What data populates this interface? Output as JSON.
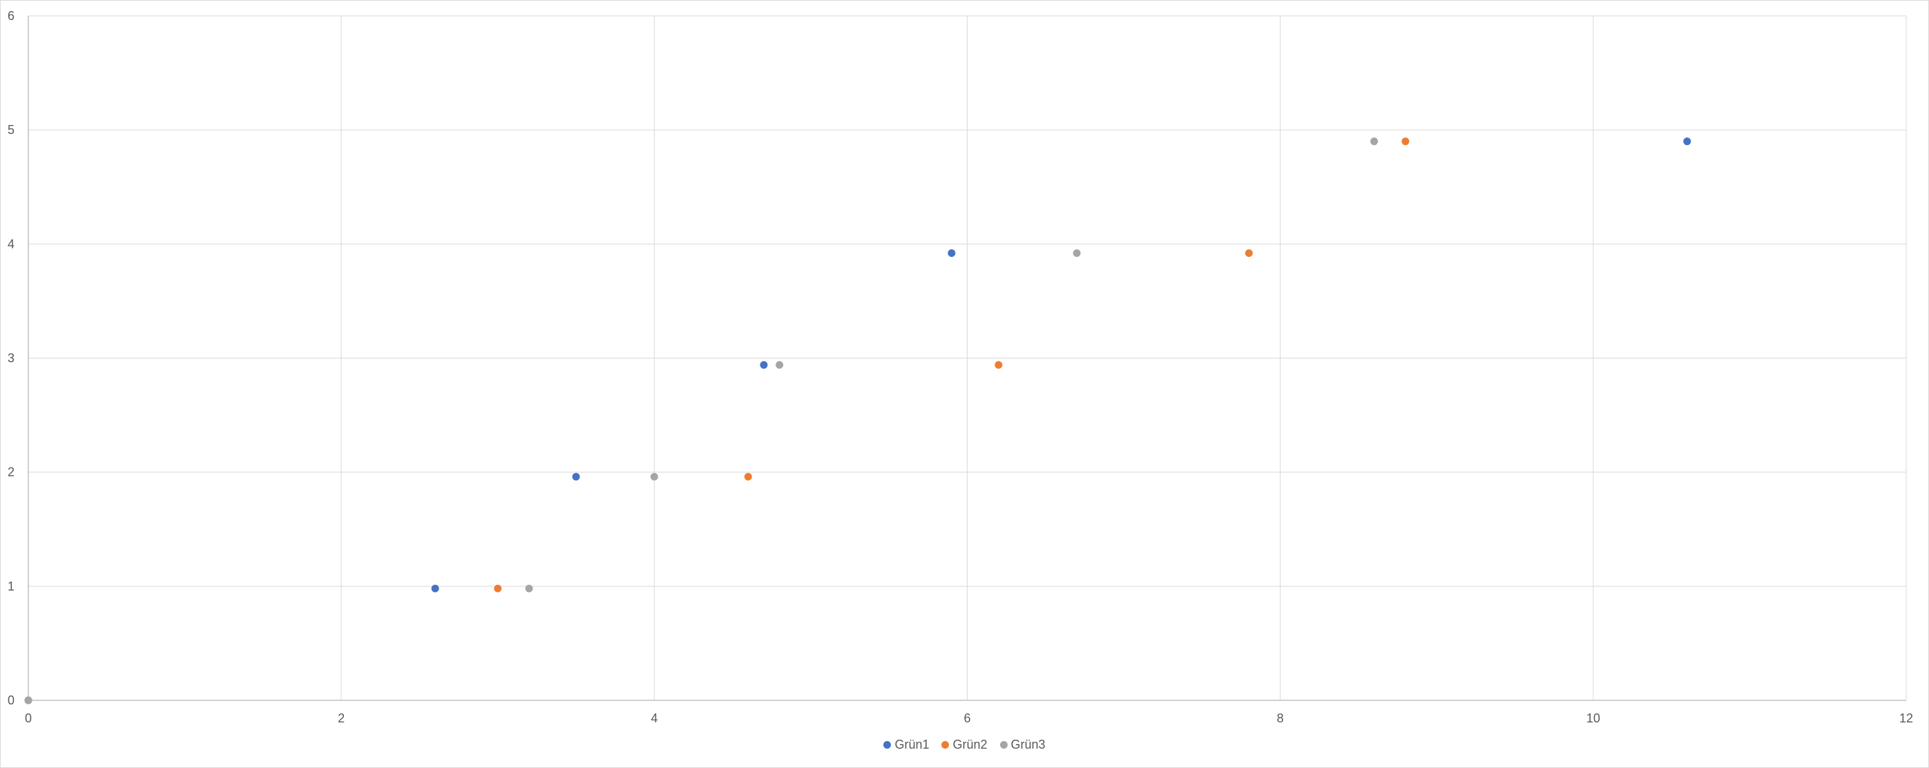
{
  "chart_data": {
    "type": "scatter",
    "title": "",
    "xlabel": "",
    "ylabel": "",
    "xlim": [
      0,
      12
    ],
    "ylim": [
      0,
      6
    ],
    "x_ticks": [
      0,
      2,
      4,
      6,
      8,
      10,
      12
    ],
    "y_ticks": [
      0,
      1,
      2,
      3,
      4,
      5,
      6
    ],
    "grid": true,
    "legend_position": "bottom",
    "series": [
      {
        "name": "Grün1",
        "color": "#4472c4",
        "points": [
          {
            "x": 0,
            "y": 0
          },
          {
            "x": 2.6,
            "y": 0.98
          },
          {
            "x": 3.5,
            "y": 1.96
          },
          {
            "x": 4.7,
            "y": 2.94
          },
          {
            "x": 5.9,
            "y": 3.92
          },
          {
            "x": 10.6,
            "y": 4.9
          }
        ]
      },
      {
        "name": "Grün2",
        "color": "#ed7d31",
        "points": [
          {
            "x": 0,
            "y": 0
          },
          {
            "x": 3.0,
            "y": 0.98
          },
          {
            "x": 4.6,
            "y": 1.96
          },
          {
            "x": 6.2,
            "y": 2.94
          },
          {
            "x": 7.8,
            "y": 3.92
          },
          {
            "x": 8.8,
            "y": 4.9
          }
        ]
      },
      {
        "name": "Grün3",
        "color": "#a5a5a5",
        "points": [
          {
            "x": 0,
            "y": 0
          },
          {
            "x": 3.2,
            "y": 0.98
          },
          {
            "x": 4.0,
            "y": 1.96
          },
          {
            "x": 4.8,
            "y": 2.94
          },
          {
            "x": 6.7,
            "y": 3.92
          },
          {
            "x": 8.6,
            "y": 4.9
          }
        ]
      }
    ]
  }
}
